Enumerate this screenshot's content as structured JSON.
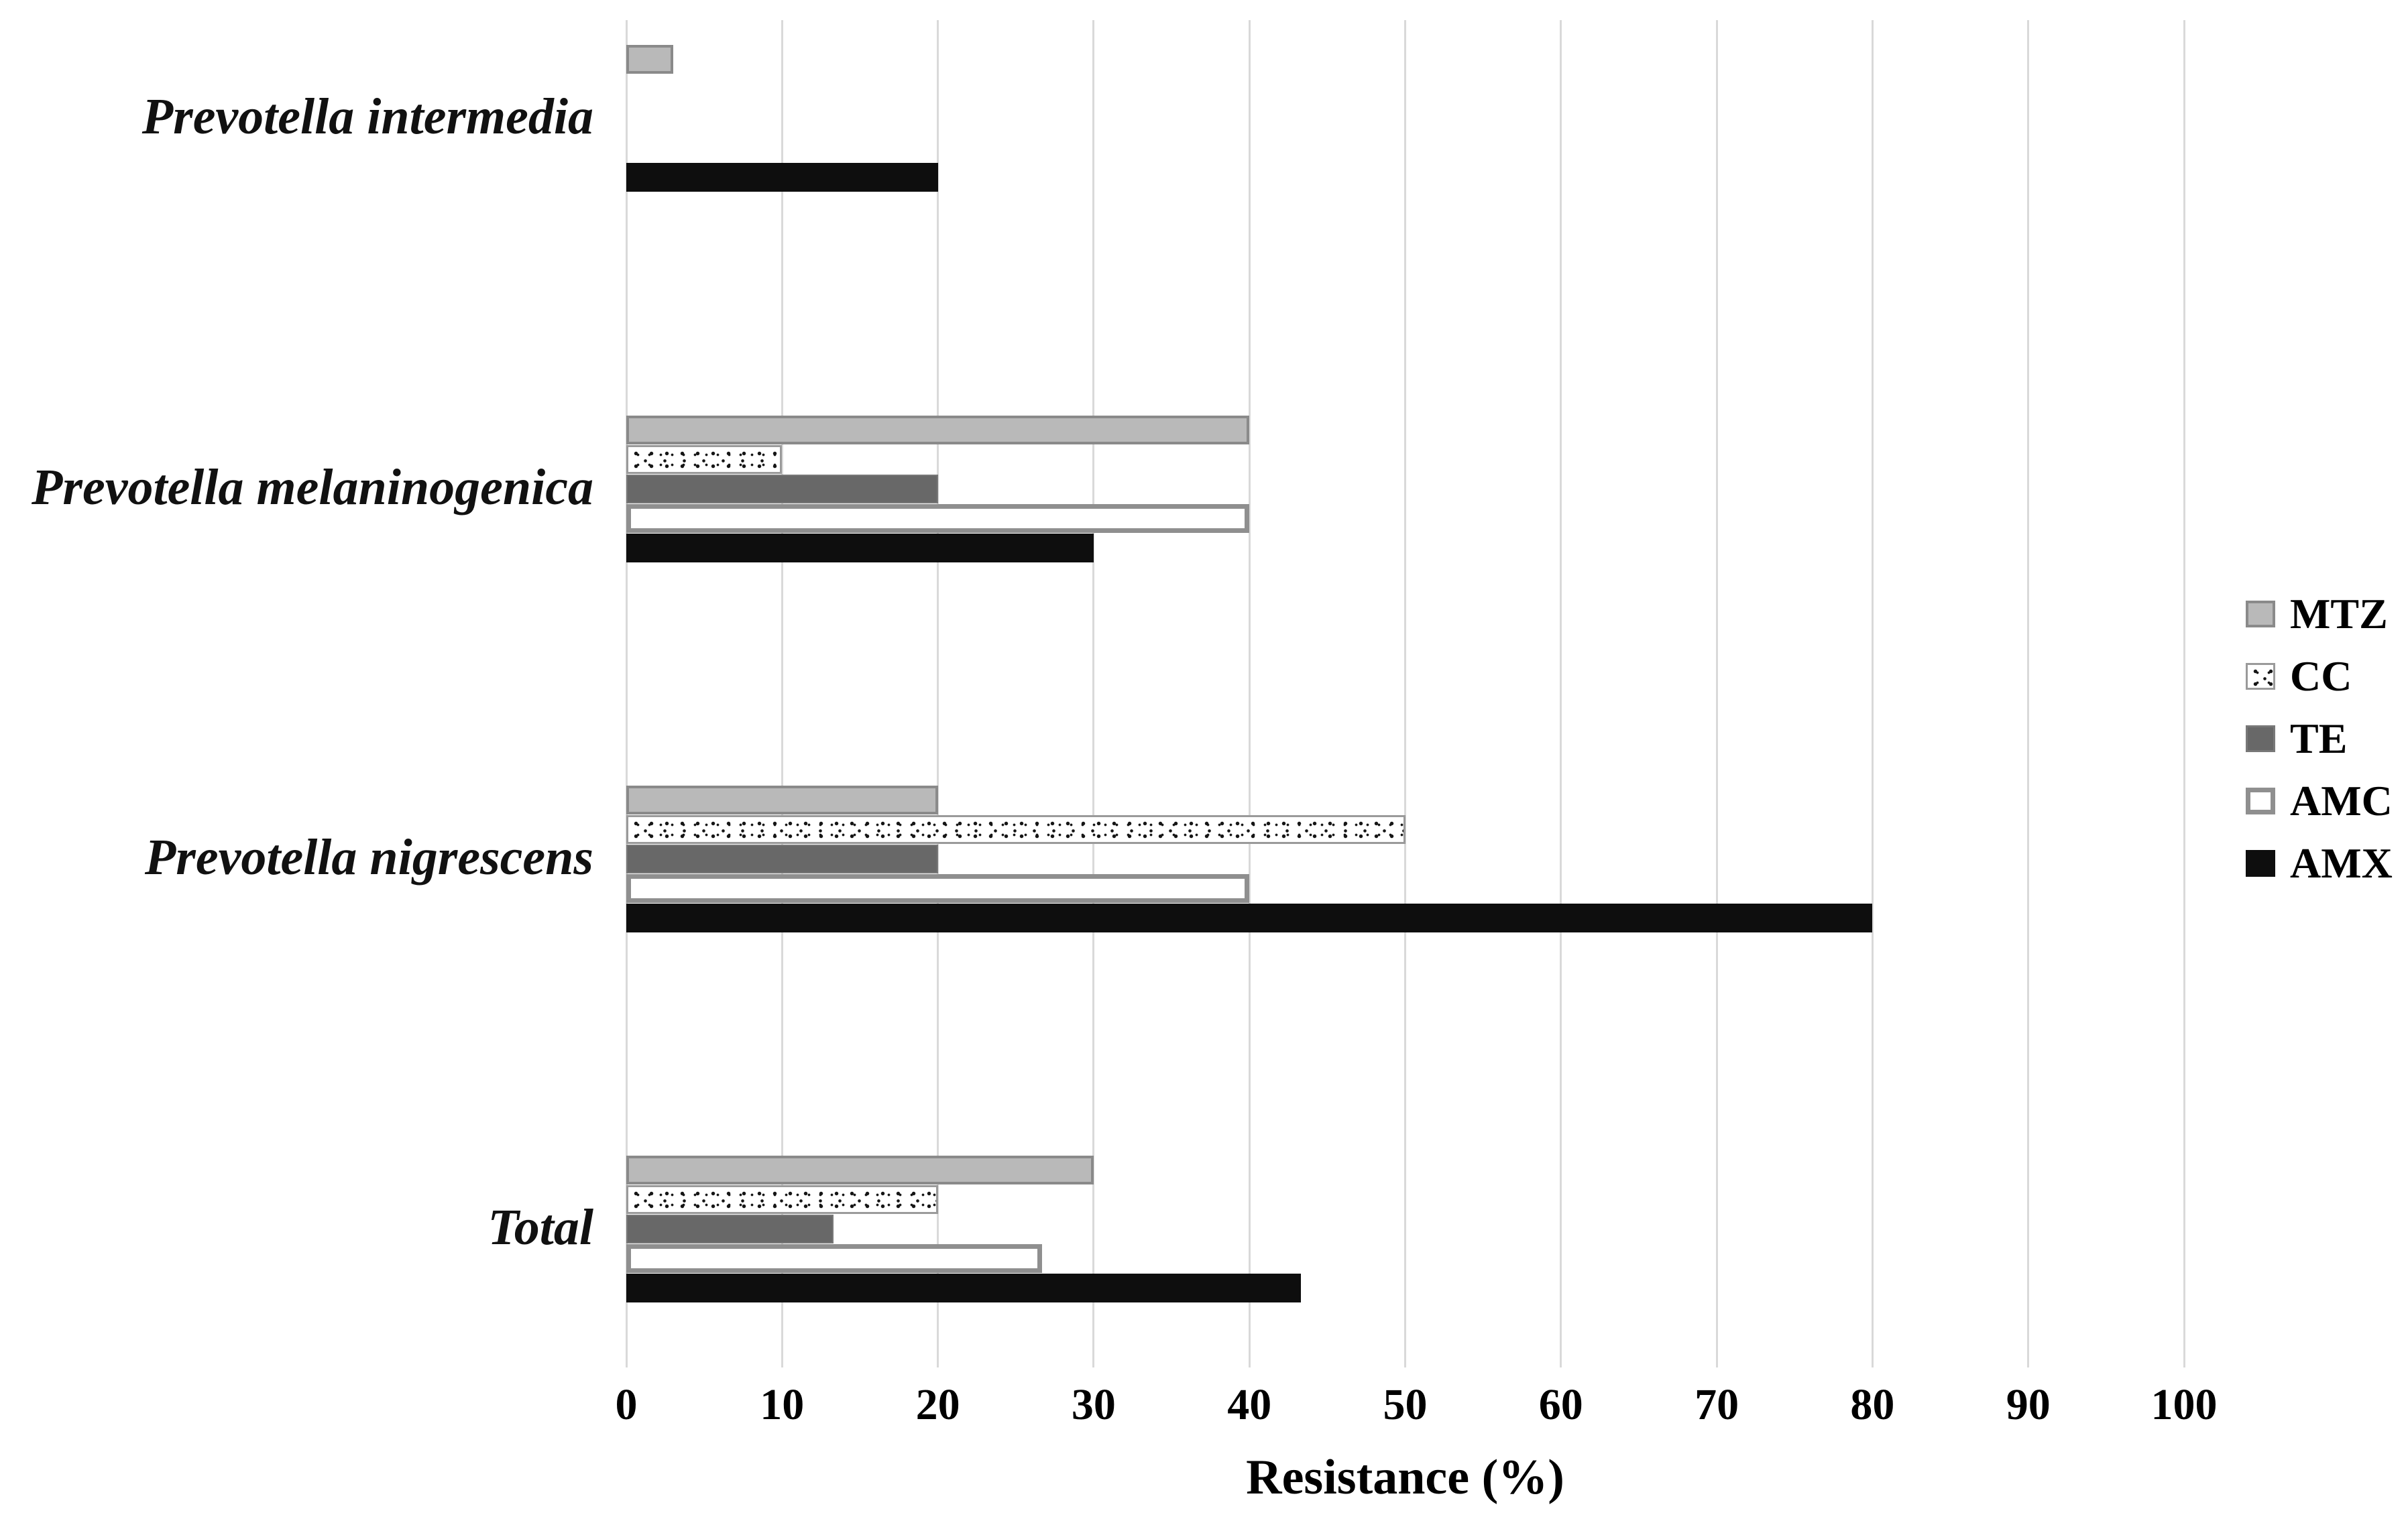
{
  "chart_data": {
    "type": "bar",
    "orientation": "horizontal",
    "title": "",
    "xlabel": "Resistance (%)",
    "ylabel": "",
    "xlim": [
      0,
      100
    ],
    "xticks": [
      0,
      10,
      20,
      30,
      40,
      50,
      60,
      70,
      80,
      90,
      100
    ],
    "grid": "vertical",
    "gridline_color": "#d9d9d9",
    "legend_position": "right",
    "categories": [
      "Prevotella intermedia",
      "Prevotella melaninogenica",
      "Prevotella nigrescens",
      "Total"
    ],
    "series": [
      {
        "name": "MTZ",
        "values": [
          3,
          40,
          20,
          30
        ],
        "fill": "#b9b9b9",
        "border_color": "#8a8a8a",
        "border_width": 4,
        "pattern": "solid"
      },
      {
        "name": "CC",
        "values": [
          0,
          10,
          50,
          20
        ],
        "fill": "#ffffff",
        "border_color": "#9a9a9a",
        "border_width": 3,
        "pattern": "speckle"
      },
      {
        "name": "TE",
        "values": [
          0,
          20,
          20,
          13.3
        ],
        "fill": "#686868",
        "border_color": "#787878",
        "border_width": 2,
        "pattern": "solid"
      },
      {
        "name": "AMC",
        "values": [
          0,
          40,
          40,
          26.7
        ],
        "fill": "#ffffff",
        "border_color": "#8f8f8f",
        "border_width": 7,
        "pattern": "solid"
      },
      {
        "name": "AMX",
        "values": [
          20,
          30,
          80,
          43.3
        ],
        "fill": "#0e0e0e",
        "border_color": "#0e0e0e",
        "border_width": 0,
        "pattern": "solid"
      }
    ]
  }
}
